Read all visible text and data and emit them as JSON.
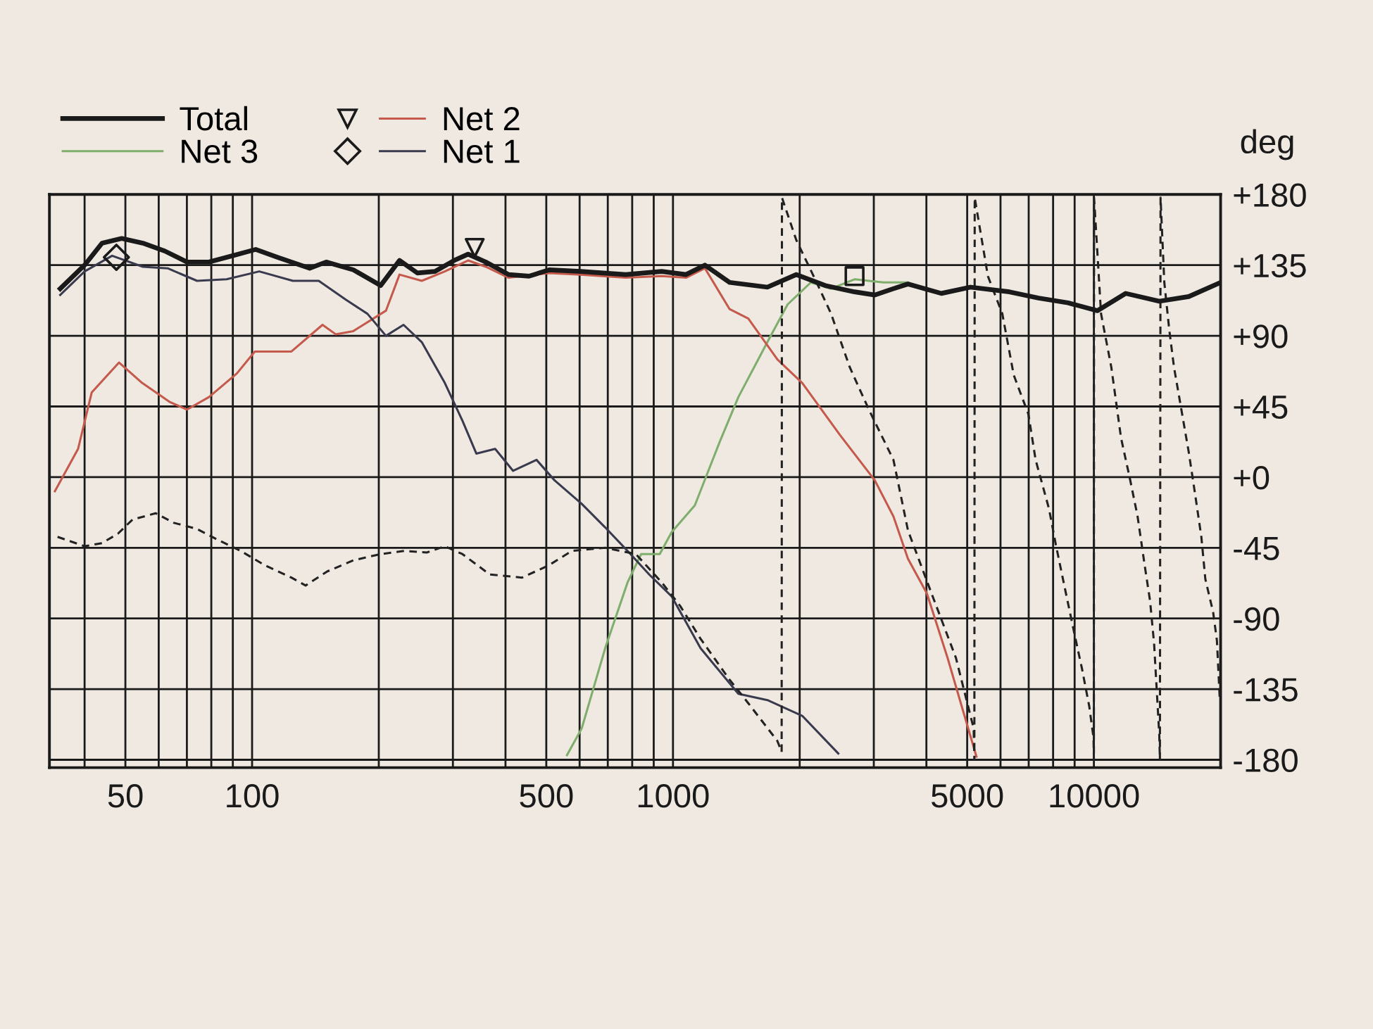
{
  "chart_data": {
    "type": "line",
    "ylabel": "deg",
    "log": "x",
    "grid": true,
    "legend": "top left",
    "xlim": [
      33,
      20000
    ],
    "ylim": [
      -185,
      180
    ],
    "xticks": [
      {
        "value": 40,
        "label": null
      },
      50,
      {
        "value": 60,
        "label": null
      },
      {
        "value": 70,
        "label": null
      },
      {
        "value": 80,
        "label": null
      },
      {
        "value": 90,
        "label": null
      },
      100,
      {
        "value": 200,
        "label": null
      },
      {
        "value": 300,
        "label": null
      },
      {
        "value": 400,
        "label": null
      },
      500,
      {
        "value": 600,
        "label": null
      },
      {
        "value": 700,
        "label": null
      },
      {
        "value": 800,
        "label": null
      },
      {
        "value": 900,
        "label": null
      },
      1000,
      {
        "value": 2000,
        "label": null
      },
      {
        "value": 3000,
        "label": null
      },
      {
        "value": 4000,
        "label": null
      },
      5000,
      {
        "value": 6000,
        "label": null
      },
      {
        "value": 7000,
        "label": null
      },
      {
        "value": 8000,
        "label": null
      },
      {
        "value": 9000,
        "label": null
      },
      10000
    ],
    "yticks": [
      {
        "value": 180,
        "label": "+180"
      },
      {
        "value": 135,
        "label": "+135"
      },
      {
        "value": 90,
        "label": "+90"
      },
      {
        "value": 45,
        "label": "+45"
      },
      {
        "value": 0,
        "label": "+0"
      },
      -45,
      -90,
      -135,
      -180
    ],
    "series": [
      {
        "name": "Total",
        "color": "#1a1a1a",
        "x": [
          35,
          40,
          44,
          49,
          55,
          62,
          70,
          79,
          90,
          102,
          115,
          137,
          150,
          174,
          202,
          224,
          247,
          272,
          302,
          326,
          359,
          407,
          455,
          508,
          603,
          772,
          940,
          1074,
          1191,
          1363,
          1676,
          1963,
          2300,
          2700,
          3016,
          3340,
          3617,
          4340,
          5090,
          6300,
          7390,
          8680,
          10200,
          11900,
          14300,
          16800,
          20000
        ],
        "values": [
          120,
          135,
          149,
          152,
          149,
          144,
          137,
          137,
          141,
          145,
          140,
          133,
          137,
          132,
          122,
          138,
          130,
          131,
          138,
          142,
          137,
          129,
          128,
          132,
          131,
          129,
          131,
          129,
          135,
          124,
          121,
          129,
          122,
          118,
          116,
          120,
          123,
          117,
          121,
          118,
          114,
          111,
          106,
          117,
          112,
          115,
          124
        ]
      },
      {
        "name": "Net 3",
        "color": "#7fae6c",
        "x": [
          560,
          607,
          690,
          780,
          840,
          930,
          993,
          1127,
          1289,
          1430,
          1676,
          1872,
          2126,
          2375,
          2700,
          3160,
          3617
        ],
        "values": [
          -177,
          -160,
          -109,
          -67,
          -49,
          -49,
          -35,
          -18,
          22,
          51,
          86,
          110,
          124,
          120,
          126,
          124,
          124
        ]
      },
      {
        "name": "Net 2",
        "color": "#c4594c",
        "x": [
          34,
          38.6,
          41.6,
          48.3,
          54.8,
          63.6,
          70,
          79,
          92,
          101.5,
          124,
          147,
          158,
          174,
          208,
          224,
          253,
          287,
          326,
          359,
          407,
          508,
          603,
          772,
          940,
          1074,
          1191,
          1363,
          1510,
          1770,
          2028,
          2490,
          3016,
          3340,
          3617,
          4010,
          4490,
          5260
        ],
        "values": [
          -9,
          18,
          54,
          73,
          60,
          48,
          43,
          51,
          66,
          80,
          80,
          97,
          91,
          93,
          106,
          129,
          125,
          131,
          138,
          134,
          127,
          130,
          129,
          127,
          128,
          127,
          133,
          107,
          101,
          75,
          60,
          27,
          -2,
          -25,
          -52,
          -74,
          -115,
          -178
        ]
      },
      {
        "type": "scatter",
        "marker": "triangle",
        "color": "#1a1a1a",
        "x": [
          338
        ],
        "values": [
          146
        ]
      },
      {
        "name": "Net 1",
        "color": "#3a3a4e",
        "x": [
          35,
          40,
          46.5,
          55,
          63,
          74,
          87,
          104,
          125,
          144,
          167,
          188,
          208,
          229,
          253,
          287,
          316,
          341,
          378,
          417,
          474,
          523,
          607,
          690,
          780,
          878,
          993,
          1163,
          1430,
          1676,
          2028,
          2470
        ],
        "values": [
          116,
          131,
          141,
          134,
          133,
          125,
          126,
          131,
          125,
          125,
          113,
          104,
          90,
          97,
          86,
          60,
          36,
          15,
          18,
          4,
          11,
          -2,
          -17,
          -32,
          -47,
          -62,
          -76,
          -109,
          -138,
          -142,
          -152,
          -176
        ]
      },
      {
        "type": "scatter",
        "marker": "diamond",
        "color": "#1a1a1a",
        "x": [
          47.6
        ],
        "values": [
          140
        ]
      },
      {
        "line_style": "dashed",
        "color": "#222222",
        "x": [
          34.5,
          40,
          44,
          48,
          52,
          59,
          65,
          74,
          83,
          94,
          107,
          124,
          134,
          151,
          174,
          202,
          230,
          260,
          287,
          316,
          367,
          438,
          508,
          575,
          690,
          816,
          940,
          1040,
          1163,
          1363,
          1510,
          1770,
          1812,
          1815,
          1963,
          2194,
          2375,
          2630,
          2920,
          3340,
          3617,
          4140,
          4700,
          5180,
          5200,
          5210,
          5600,
          6060,
          6450,
          6990,
          7270,
          7820,
          8120,
          8520,
          9010,
          9370,
          9750,
          9980,
          10000,
          10010,
          10400,
          11000,
          11600,
          12200,
          12700,
          13200,
          13600,
          13900,
          14300,
          14350,
          14400,
          14700,
          15100,
          15500,
          16800,
          17400,
          18000,
          18400,
          19200,
          19600,
          19900
        ],
        "values": [
          -38,
          -44,
          -42,
          -36,
          -27,
          -23,
          -29,
          -33,
          -40,
          -47,
          -56,
          -64,
          -69,
          -60,
          -53,
          -49,
          -47,
          -48,
          -44,
          -49,
          -62,
          -64,
          -56,
          -47,
          -45,
          -49,
          -67,
          -82,
          -103,
          -129,
          -144,
          -168,
          -175,
          178,
          151,
          124,
          104,
          70,
          43,
          11,
          -34,
          -76,
          -115,
          -160,
          -180,
          178,
          128,
          104,
          65,
          40,
          11,
          -20,
          -43,
          -70,
          -101,
          -122,
          -146,
          -166,
          -180,
          178,
          104,
          70,
          25,
          -2,
          -25,
          -56,
          -79,
          -106,
          -164,
          -180,
          178,
          124,
          94,
          70,
          16,
          -11,
          -38,
          -65,
          -86,
          -104,
          -140
        ]
      },
      {
        "type": "scatter",
        "marker": "square",
        "color": "#1a1a1a",
        "x": [
          2700
        ],
        "values": [
          128
        ]
      }
    ]
  }
}
